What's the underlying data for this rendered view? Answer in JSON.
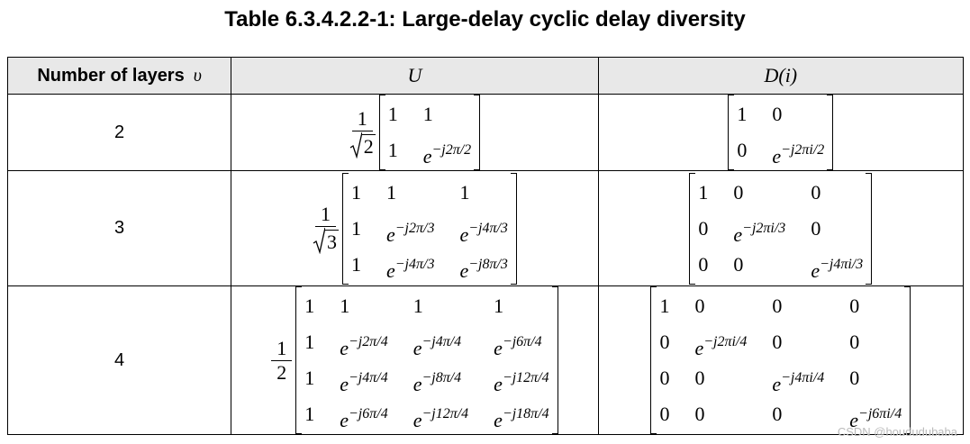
{
  "title": "Table 6.3.4.2.2-1: Large-delay cyclic delay diversity",
  "table": {
    "header": {
      "layers": "Number of layers",
      "symbol": "υ",
      "u": "U",
      "d": "D(i)"
    },
    "rows": [
      {
        "layers": "2",
        "u": {
          "num": "1",
          "den": "2",
          "sqrt": true,
          "entries": [
            [
              "1",
              "1"
            ],
            [
              "1",
              {
                "base": "e",
                "exp": "−j2π/2"
              }
            ]
          ]
        },
        "d": {
          "entries": [
            [
              "1",
              "0"
            ],
            [
              "0",
              {
                "base": "e",
                "exp": "−j2πi/2"
              }
            ]
          ]
        }
      },
      {
        "layers": "3",
        "u": {
          "num": "1",
          "den": "3",
          "sqrt": true,
          "entries": [
            [
              "1",
              "1",
              "1"
            ],
            [
              "1",
              {
                "base": "e",
                "exp": "−j2π/3"
              },
              {
                "base": "e",
                "exp": "−j4π/3"
              }
            ],
            [
              "1",
              {
                "base": "e",
                "exp": "−j4π/3"
              },
              {
                "base": "e",
                "exp": "−j8π/3"
              }
            ]
          ]
        },
        "d": {
          "entries": [
            [
              "1",
              "0",
              "0"
            ],
            [
              "0",
              {
                "base": "e",
                "exp": "−j2πi/3"
              },
              "0"
            ],
            [
              "0",
              "0",
              {
                "base": "e",
                "exp": "−j4πi/3"
              }
            ]
          ]
        }
      },
      {
        "layers": "4",
        "u": {
          "num": "1",
          "den": "2",
          "sqrt": false,
          "entries": [
            [
              "1",
              "1",
              "1",
              "1"
            ],
            [
              "1",
              {
                "base": "e",
                "exp": "−j2π/4"
              },
              {
                "base": "e",
                "exp": "−j4π/4"
              },
              {
                "base": "e",
                "exp": "−j6π/4"
              }
            ],
            [
              "1",
              {
                "base": "e",
                "exp": "−j4π/4"
              },
              {
                "base": "e",
                "exp": "−j8π/4"
              },
              {
                "base": "e",
                "exp": "−j12π/4"
              }
            ],
            [
              "1",
              {
                "base": "e",
                "exp": "−j6π/4"
              },
              {
                "base": "e",
                "exp": "−j12π/4"
              },
              {
                "base": "e",
                "exp": "−j18π/4"
              }
            ]
          ]
        },
        "d": {
          "entries": [
            [
              "1",
              "0",
              "0",
              "0"
            ],
            [
              "0",
              {
                "base": "e",
                "exp": "−j2πi/4"
              },
              "0",
              "0"
            ],
            [
              "0",
              "0",
              {
                "base": "e",
                "exp": "−j4πi/4"
              },
              "0"
            ],
            [
              "0",
              "0",
              "0",
              {
                "base": "e",
                "exp": "−j6πi/4"
              }
            ]
          ]
        }
      }
    ]
  },
  "watermark": "CSDN @hoududubaba"
}
